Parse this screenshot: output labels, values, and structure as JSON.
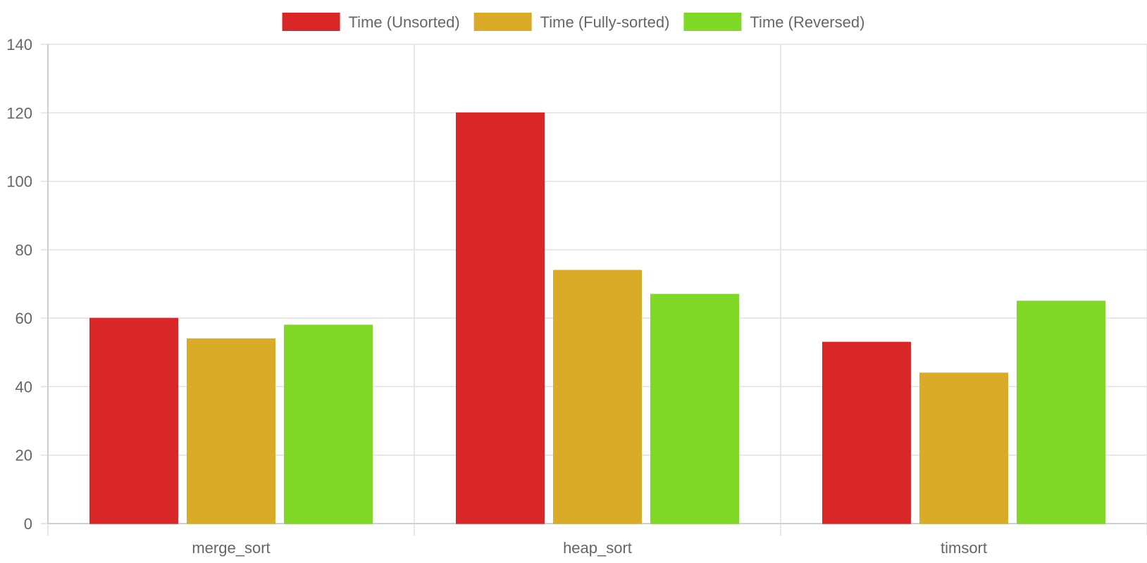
{
  "chart_data": {
    "type": "bar",
    "categories": [
      "merge_sort",
      "heap_sort",
      "timsort"
    ],
    "series": [
      {
        "name": "Time (Unsorted)",
        "color": "#d92626",
        "values": [
          60,
          120,
          53
        ]
      },
      {
        "name": "Time (Fully-sorted)",
        "color": "#d9ab26",
        "values": [
          54,
          74,
          44
        ]
      },
      {
        "name": "Time (Reversed)",
        "color": "#80d926",
        "values": [
          58,
          67,
          65
        ]
      }
    ],
    "ylim": [
      0,
      140
    ],
    "yticks": [
      "0",
      "20",
      "40",
      "60",
      "80",
      "100",
      "120",
      "140"
    ],
    "grid": true,
    "legend_position": "top-center"
  }
}
